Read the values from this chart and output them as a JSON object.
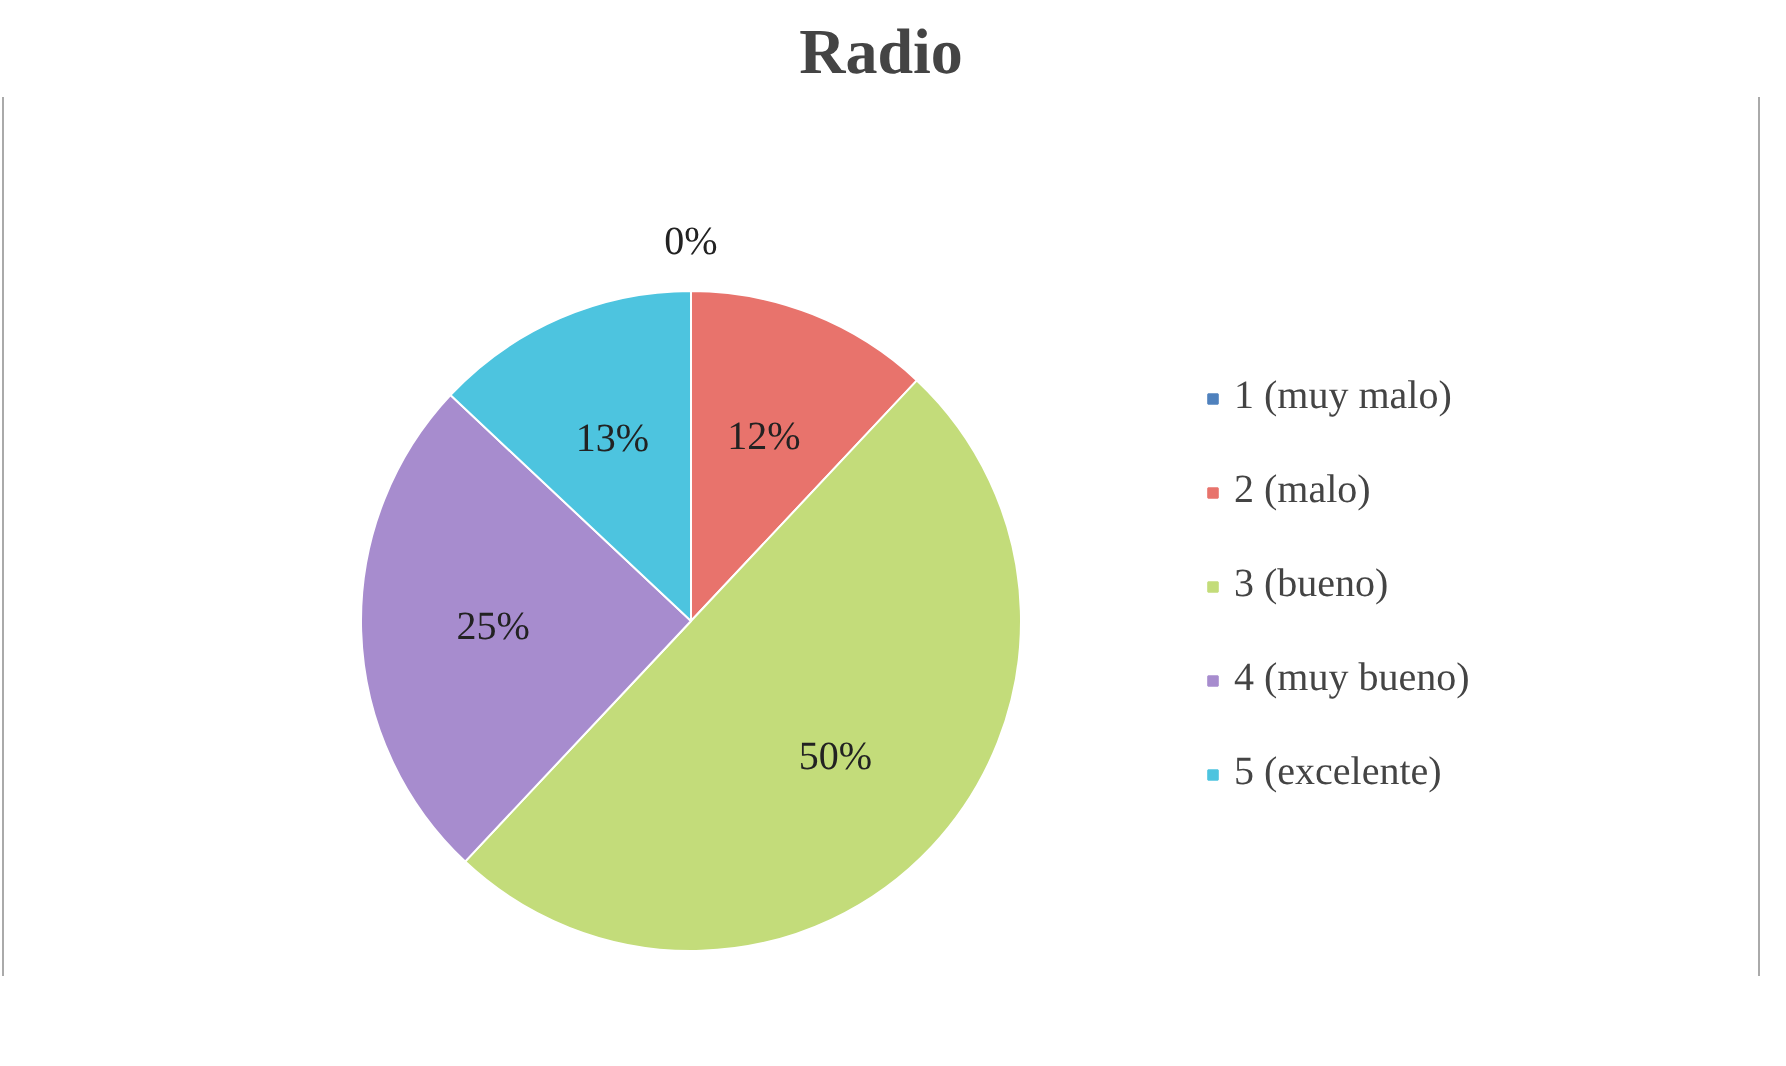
{
  "chart_data": {
    "type": "pie",
    "title": "Radio",
    "categories": [
      "1 (muy malo)",
      "2 (malo)",
      "3 (bueno)",
      "4 (muy bueno)",
      "5 (excelente)"
    ],
    "values": [
      0,
      12,
      50,
      25,
      13
    ],
    "value_labels": [
      "0%",
      "12%",
      "50%",
      "25%",
      "13%"
    ],
    "colors": [
      "#4f81bd",
      "#e8736c",
      "#c3dc7a",
      "#a78cce",
      "#4dc4df"
    ],
    "legend": "right"
  }
}
